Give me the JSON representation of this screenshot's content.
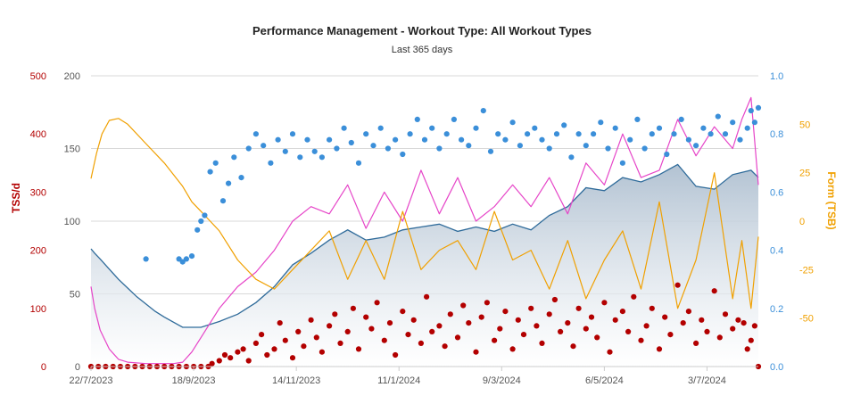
{
  "chart_data": {
    "type": "line",
    "title": "Performance Management - Workout Type: All Workout Types",
    "subtitle": "Last 365 days",
    "x_tick_labels": [
      "22/7/2023",
      "18/9/2023",
      "14/11/2023",
      "11/1/2024",
      "9/3/2024",
      "6/5/2024",
      "3/7/2024"
    ],
    "left_outer_axis": {
      "label": "TSS/d",
      "color": "#b30000",
      "range": [
        0,
        500
      ],
      "ticks": [
        "0",
        "100",
        "200",
        "300",
        "400",
        "500"
      ]
    },
    "left_inner_axis": {
      "label": "",
      "color": "#555555",
      "range": [
        0,
        200
      ],
      "ticks": [
        "0",
        "50",
        "100",
        "150",
        "200"
      ]
    },
    "right_inner_axis": {
      "label": "",
      "color": "#3b8fd9",
      "range": [
        0.0,
        1.0
      ],
      "ticks": [
        "0.0",
        "0.2",
        "0.4",
        "0.6",
        "0.8",
        "1.0"
      ]
    },
    "right_outer_axis": {
      "label": "Form (TSB)",
      "color": "#f0a000",
      "range": [
        -75,
        75
      ],
      "ticks": [
        "-50",
        "-25",
        "0",
        "25",
        "50"
      ]
    },
    "grid": true,
    "series": [
      {
        "key": "fitness",
        "type": "area",
        "color": "#2f6b9a",
        "fill": "#c2d1df",
        "x": [
          0,
          2,
          5,
          10,
          15,
          20,
          25,
          30,
          35,
          40,
          50,
          60,
          70,
          80,
          90,
          100,
          110,
          120,
          130,
          140,
          150,
          160,
          170,
          180,
          190,
          200,
          210,
          220,
          230,
          240,
          250,
          260,
          270,
          280,
          290,
          300,
          310,
          320,
          330,
          340,
          350,
          360,
          364
        ],
        "y": [
          81,
          78,
          74,
          67,
          60,
          54,
          48,
          43,
          38,
          34,
          27,
          27,
          31,
          36,
          44,
          55,
          70,
          78,
          87,
          94,
          87,
          89,
          94,
          96,
          98,
          93,
          96,
          93,
          98,
          94,
          104,
          110,
          123,
          121,
          130,
          127,
          132,
          139,
          124,
          122,
          132,
          135,
          130
        ]
      },
      {
        "key": "fatigue",
        "type": "line",
        "color": "#e645c8",
        "x": [
          0,
          2,
          5,
          10,
          15,
          20,
          30,
          40,
          45,
          50,
          55,
          60,
          70,
          80,
          90,
          100,
          110,
          120,
          130,
          140,
          150,
          160,
          170,
          180,
          190,
          200,
          210,
          220,
          230,
          240,
          250,
          260,
          270,
          280,
          290,
          300,
          310,
          320,
          330,
          340,
          350,
          355,
          360,
          364
        ],
        "y": [
          55,
          40,
          25,
          12,
          5,
          3,
          2,
          2,
          2,
          3,
          10,
          20,
          40,
          55,
          65,
          80,
          100,
          110,
          105,
          125,
          95,
          120,
          100,
          135,
          105,
          130,
          100,
          110,
          125,
          110,
          130,
          105,
          140,
          125,
          160,
          130,
          135,
          170,
          145,
          165,
          150,
          170,
          185,
          125
        ]
      },
      {
        "key": "form",
        "type": "line",
        "color": "#f0a000",
        "x": [
          0,
          3,
          6,
          10,
          15,
          20,
          30,
          40,
          50,
          55,
          60,
          65,
          70,
          80,
          90,
          100,
          110,
          120,
          130,
          140,
          150,
          160,
          170,
          180,
          190,
          200,
          210,
          220,
          230,
          240,
          250,
          260,
          270,
          280,
          290,
          300,
          310,
          320,
          330,
          340,
          350,
          355,
          360,
          364
        ],
        "y": [
          22,
          35,
          45,
          52,
          53,
          50,
          40,
          30,
          18,
          10,
          5,
          0,
          -5,
          -20,
          -30,
          -35,
          -25,
          -15,
          -5,
          -30,
          -10,
          -30,
          5,
          -25,
          -15,
          -10,
          -25,
          5,
          -20,
          -15,
          -35,
          -10,
          -40,
          -20,
          -5,
          -35,
          10,
          -45,
          -20,
          25,
          -40,
          -10,
          -45,
          -8
        ]
      },
      {
        "key": "daily-tss",
        "type": "scatter",
        "color": "#b30000",
        "points": [
          [
            0,
            0
          ],
          [
            4,
            0
          ],
          [
            8,
            0
          ],
          [
            12,
            0
          ],
          [
            16,
            0
          ],
          [
            20,
            0
          ],
          [
            24,
            0
          ],
          [
            28,
            0
          ],
          [
            32,
            0
          ],
          [
            36,
            0
          ],
          [
            40,
            0
          ],
          [
            44,
            0
          ],
          [
            48,
            0
          ],
          [
            52,
            0
          ],
          [
            56,
            0
          ],
          [
            60,
            0
          ],
          [
            64,
            0
          ],
          [
            66,
            5
          ],
          [
            70,
            10
          ],
          [
            73,
            20
          ],
          [
            76,
            15
          ],
          [
            80,
            25
          ],
          [
            83,
            30
          ],
          [
            86,
            10
          ],
          [
            90,
            40
          ],
          [
            93,
            55
          ],
          [
            96,
            20
          ],
          [
            100,
            30
          ],
          [
            103,
            75
          ],
          [
            106,
            45
          ],
          [
            110,
            15
          ],
          [
            113,
            60
          ],
          [
            116,
            35
          ],
          [
            120,
            80
          ],
          [
            123,
            50
          ],
          [
            126,
            25
          ],
          [
            130,
            70
          ],
          [
            133,
            90
          ],
          [
            136,
            40
          ],
          [
            140,
            60
          ],
          [
            143,
            100
          ],
          [
            146,
            30
          ],
          [
            150,
            85
          ],
          [
            153,
            65
          ],
          [
            156,
            110
          ],
          [
            160,
            45
          ],
          [
            163,
            75
          ],
          [
            166,
            20
          ],
          [
            170,
            95
          ],
          [
            173,
            55
          ],
          [
            176,
            80
          ],
          [
            180,
            40
          ],
          [
            183,
            120
          ],
          [
            186,
            60
          ],
          [
            190,
            70
          ],
          [
            193,
            35
          ],
          [
            196,
            90
          ],
          [
            200,
            50
          ],
          [
            203,
            105
          ],
          [
            206,
            75
          ],
          [
            210,
            25
          ],
          [
            213,
            85
          ],
          [
            216,
            110
          ],
          [
            220,
            45
          ],
          [
            223,
            65
          ],
          [
            226,
            95
          ],
          [
            230,
            30
          ],
          [
            233,
            80
          ],
          [
            236,
            55
          ],
          [
            240,
            100
          ],
          [
            243,
            70
          ],
          [
            246,
            40
          ],
          [
            250,
            90
          ],
          [
            253,
            115
          ],
          [
            256,
            60
          ],
          [
            260,
            75
          ],
          [
            263,
            35
          ],
          [
            266,
            100
          ],
          [
            270,
            65
          ],
          [
            273,
            85
          ],
          [
            276,
            50
          ],
          [
            280,
            110
          ],
          [
            283,
            25
          ],
          [
            286,
            80
          ],
          [
            290,
            95
          ],
          [
            293,
            60
          ],
          [
            296,
            120
          ],
          [
            300,
            45
          ],
          [
            303,
            70
          ],
          [
            306,
            100
          ],
          [
            310,
            30
          ],
          [
            313,
            85
          ],
          [
            316,
            55
          ],
          [
            320,
            140
          ],
          [
            323,
            75
          ],
          [
            326,
            95
          ],
          [
            330,
            40
          ],
          [
            333,
            80
          ],
          [
            336,
            60
          ],
          [
            340,
            130
          ],
          [
            343,
            50
          ],
          [
            346,
            90
          ],
          [
            350,
            65
          ],
          [
            353,
            80
          ],
          [
            356,
            75
          ],
          [
            358,
            30
          ],
          [
            360,
            45
          ],
          [
            362,
            70
          ],
          [
            364,
            0
          ]
        ]
      },
      {
        "key": "efficiency",
        "type": "scatter",
        "color": "#3b8fd9",
        "points": [
          [
            30,
            0.37
          ],
          [
            48,
            0.37
          ],
          [
            50,
            0.36
          ],
          [
            52,
            0.37
          ],
          [
            55,
            0.38
          ],
          [
            58,
            0.47
          ],
          [
            60,
            0.5
          ],
          [
            62,
            0.52
          ],
          [
            65,
            0.67
          ],
          [
            68,
            0.7
          ],
          [
            72,
            0.57
          ],
          [
            75,
            0.63
          ],
          [
            78,
            0.72
          ],
          [
            82,
            0.65
          ],
          [
            86,
            0.75
          ],
          [
            90,
            0.8
          ],
          [
            94,
            0.76
          ],
          [
            98,
            0.7
          ],
          [
            102,
            0.78
          ],
          [
            106,
            0.74
          ],
          [
            110,
            0.8
          ],
          [
            114,
            0.72
          ],
          [
            118,
            0.78
          ],
          [
            122,
            0.74
          ],
          [
            126,
            0.72
          ],
          [
            130,
            0.78
          ],
          [
            134,
            0.75
          ],
          [
            138,
            0.82
          ],
          [
            142,
            0.77
          ],
          [
            146,
            0.7
          ],
          [
            150,
            0.8
          ],
          [
            154,
            0.76
          ],
          [
            158,
            0.82
          ],
          [
            162,
            0.75
          ],
          [
            166,
            0.78
          ],
          [
            170,
            0.73
          ],
          [
            174,
            0.8
          ],
          [
            178,
            0.85
          ],
          [
            182,
            0.78
          ],
          [
            186,
            0.82
          ],
          [
            190,
            0.75
          ],
          [
            194,
            0.8
          ],
          [
            198,
            0.85
          ],
          [
            202,
            0.78
          ],
          [
            206,
            0.76
          ],
          [
            210,
            0.82
          ],
          [
            214,
            0.88
          ],
          [
            218,
            0.74
          ],
          [
            222,
            0.8
          ],
          [
            226,
            0.78
          ],
          [
            230,
            0.84
          ],
          [
            234,
            0.76
          ],
          [
            238,
            0.8
          ],
          [
            242,
            0.82
          ],
          [
            246,
            0.78
          ],
          [
            250,
            0.75
          ],
          [
            254,
            0.8
          ],
          [
            258,
            0.83
          ],
          [
            262,
            0.72
          ],
          [
            266,
            0.8
          ],
          [
            270,
            0.76
          ],
          [
            274,
            0.8
          ],
          [
            278,
            0.84
          ],
          [
            282,
            0.75
          ],
          [
            286,
            0.82
          ],
          [
            290,
            0.7
          ],
          [
            294,
            0.78
          ],
          [
            298,
            0.85
          ],
          [
            302,
            0.75
          ],
          [
            306,
            0.8
          ],
          [
            310,
            0.82
          ],
          [
            314,
            0.73
          ],
          [
            318,
            0.8
          ],
          [
            322,
            0.85
          ],
          [
            326,
            0.78
          ],
          [
            330,
            0.76
          ],
          [
            334,
            0.82
          ],
          [
            338,
            0.8
          ],
          [
            342,
            0.86
          ],
          [
            346,
            0.8
          ],
          [
            350,
            0.84
          ],
          [
            354,
            0.78
          ],
          [
            358,
            0.82
          ],
          [
            360,
            0.88
          ],
          [
            362,
            0.84
          ],
          [
            364,
            0.89
          ]
        ]
      }
    ]
  }
}
